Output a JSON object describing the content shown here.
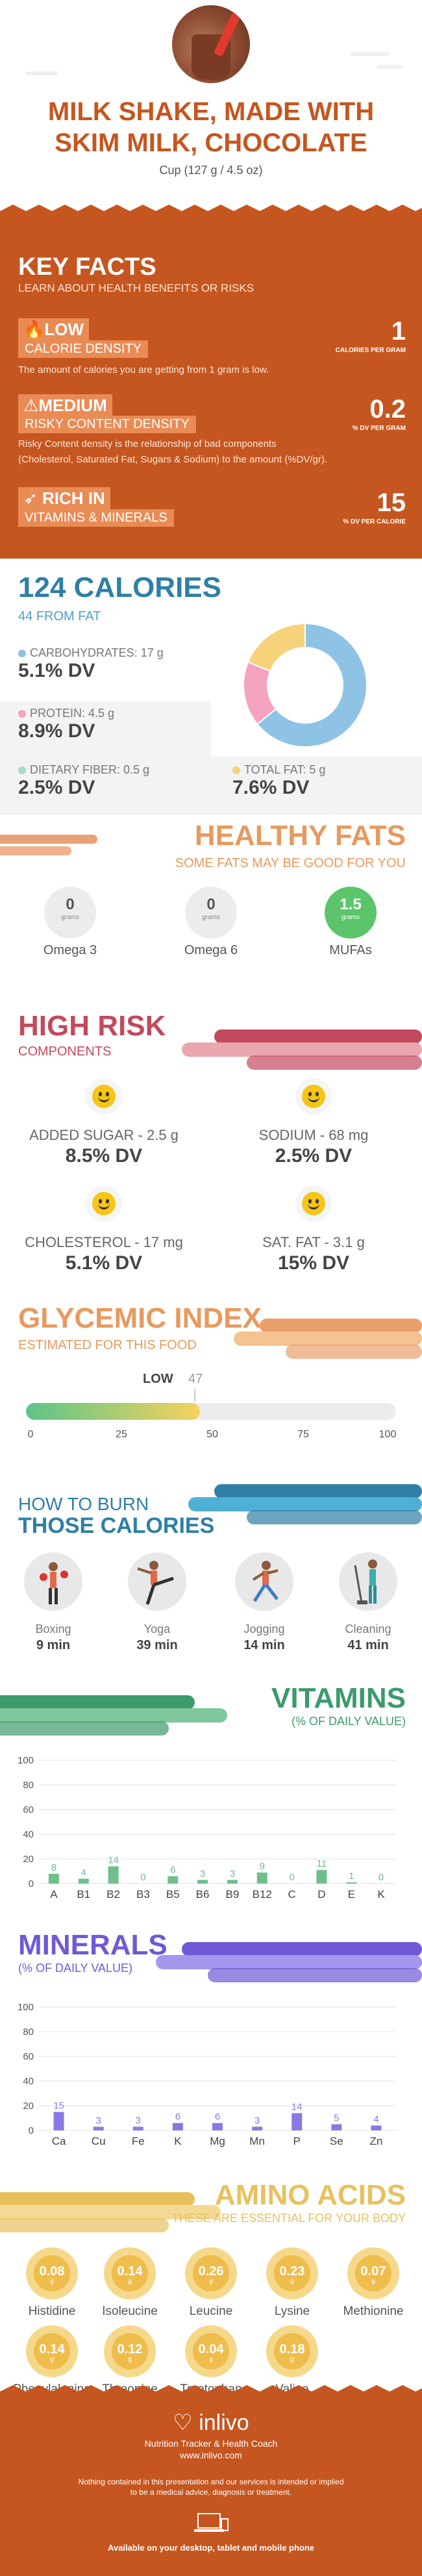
{
  "header": {
    "title_line1": "MILK SHAKE, MADE WITH",
    "title_line2": "SKIM MILK, CHOCOLATE",
    "serving": "Cup (127 g / 4.5 oz)"
  },
  "key_facts": {
    "title": "KEY FACTS",
    "subtitle": "LEARN ABOUT HEALTH BENEFITS OR RISKS",
    "calorie_density": {
      "level": "LOW",
      "label": "CALORIE DENSITY",
      "value": "1",
      "unit": "CALORIES PER GRAM",
      "desc": "The amount of calories you are getting from 1 gram is low."
    },
    "risky_density": {
      "level": "MEDIUM",
      "label": "RISKY CONTENT DENSITY",
      "value": "0.2",
      "unit": "% DV PER GRAM",
      "desc1": "Risky Content density is the relationship of bad components",
      "desc2": "(Cholesterol, Saturated Fat, Sugars & Sodium) to the amount (%DV/gr)."
    },
    "rich_in": {
      "level": "RICH IN",
      "label": "VITAMINS & MINERALS",
      "value": "15",
      "unit": "% DV PER CALORIE"
    }
  },
  "calories": {
    "title": "124 CALORIES",
    "subtitle": "44 FROM FAT",
    "carbs_label": "CARBOHYDRATES: 17 g",
    "carbs_dv": "5.1% DV",
    "protein_label": "PROTEIN: 4.5 g",
    "protein_dv": "8.9% DV",
    "fiber_label": "DIETARY FIBER: 0.5 g",
    "fiber_dv": "2.5% DV",
    "fat_label": "TOTAL FAT: 5 g",
    "fat_dv": "7.6% DV",
    "colors": {
      "carbs": "#8fc3e6",
      "protein": "#f4a3c0",
      "fiber": "#a8d8c8",
      "fat": "#f6d27a"
    },
    "chart_data": {
      "type": "pie",
      "categories": [
        "Carbohydrates",
        "Protein",
        "Total Fat"
      ],
      "values": [
        17,
        4.5,
        5
      ]
    }
  },
  "healthy_fats": {
    "title": "HEALTHY FATS",
    "subtitle": "SOME FATS MAY BE GOOD FOR YOU",
    "items": [
      {
        "value": "0",
        "unit": "grams",
        "name": "Omega 3"
      },
      {
        "value": "0",
        "unit": "grams",
        "name": "Omega 6"
      },
      {
        "value": "1.5",
        "unit": "grams",
        "name": "MUFAs"
      }
    ]
  },
  "high_risk": {
    "title": "HIGH RISK",
    "subtitle": "COMPONENTS",
    "items": [
      {
        "label": "ADDED SUGAR - 2.5 g",
        "dv": "8.5% DV"
      },
      {
        "label": "SODIUM - 68 mg",
        "dv": "2.5% DV"
      },
      {
        "label": "CHOLESTEROL - 17 mg",
        "dv": "5.1% DV"
      },
      {
        "label": "SAT. FAT - 3.1 g",
        "dv": "15% DV"
      }
    ]
  },
  "glycemic": {
    "title": "GLYCEMIC INDEX",
    "subtitle": "ESTIMATED FOR THIS FOOD",
    "level": "LOW",
    "value": "47",
    "ticks": [
      "0",
      "25",
      "50",
      "75",
      "100"
    ]
  },
  "burn": {
    "title1": "HOW TO BURN",
    "title2": "THOSE CALORIES",
    "items": [
      {
        "name": "Boxing",
        "min": "9 min"
      },
      {
        "name": "Yoga",
        "min": "39 min"
      },
      {
        "name": "Jogging",
        "min": "14 min"
      },
      {
        "name": "Cleaning",
        "min": "41 min"
      }
    ]
  },
  "vitamins": {
    "title": "VITAMINS",
    "subtitle": "(% OF DAILY VALUE)",
    "color": "#6fbf8a",
    "chart_data": {
      "type": "bar",
      "categories": [
        "A",
        "B1",
        "B2",
        "B3",
        "B5",
        "B6",
        "B9",
        "B12",
        "C",
        "D",
        "E",
        "K"
      ],
      "values": [
        8,
        4,
        14,
        0,
        6,
        3,
        3,
        9,
        0,
        11,
        1,
        0
      ],
      "ylim": [
        0,
        100
      ],
      "yticks": [
        "0",
        "20",
        "40",
        "60",
        "80",
        "100"
      ]
    }
  },
  "minerals": {
    "title": "MINERALS",
    "subtitle": "(% OF DAILY VALUE)",
    "color": "#8a78e6",
    "chart_data": {
      "type": "bar",
      "categories": [
        "Ca",
        "Cu",
        "Fe",
        "K",
        "Mg",
        "Mn",
        "P",
        "Se",
        "Zn"
      ],
      "values": [
        15,
        3,
        3,
        6,
        6,
        3,
        14,
        5,
        4
      ],
      "ylim": [
        0,
        100
      ],
      "yticks": [
        "0",
        "20",
        "40",
        "60",
        "80",
        "100"
      ]
    }
  },
  "amino": {
    "title": "AMINO ACIDS",
    "subtitle": "THESE ARE ESSENTIAL FOR YOUR BODY",
    "unit": "g",
    "items": [
      {
        "value": "0.08",
        "name": "Histidine"
      },
      {
        "value": "0.14",
        "name": "Isoleucine"
      },
      {
        "value": "0.26",
        "name": "Leucine"
      },
      {
        "value": "0.23",
        "name": "Lysine"
      },
      {
        "value": "0.07",
        "name": "Methionine"
      },
      {
        "value": "0.14",
        "name": "Phenylalanine"
      },
      {
        "value": "0.12",
        "name": "Threonine"
      },
      {
        "value": "0.04",
        "name": "Tryptophan"
      },
      {
        "value": "0.18",
        "name": "Valine"
      }
    ]
  },
  "footer": {
    "brand": "inlivo",
    "tagline": "Nutrition Tracker & Health Coach",
    "url": "www.inlivo.com",
    "disclaimer1": "Nothing contained in this presentation and our services is intended or implied",
    "disclaimer2": "to be a medical advice, diagnosis or treatment.",
    "available": "Available on your desktop, tablet and mobile phone"
  }
}
